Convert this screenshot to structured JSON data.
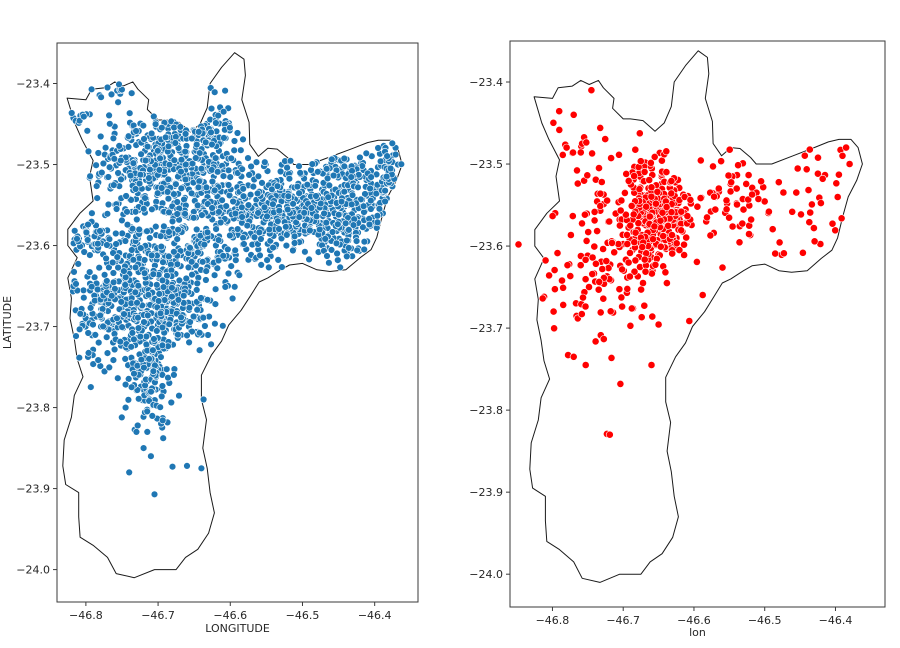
{
  "chart_data": [
    {
      "type": "scatter",
      "xlabel": "LONGITUDE",
      "ylabel": "LATITUDE",
      "xlim": [
        -46.84,
        -46.34
      ],
      "ylim": [
        -24.04,
        -23.35
      ],
      "xticks": [
        -46.8,
        -46.7,
        -46.6,
        -46.5,
        -46.4
      ],
      "yticks": [
        -23.4,
        -23.5,
        -23.6,
        -23.7,
        -23.8,
        -23.9,
        -24.0
      ],
      "color": "#1f77b4",
      "marker_edge": "#ffffff",
      "density": "dense",
      "clusters": [
        {
          "center": [
            -46.7,
            -23.5
          ],
          "spread": [
            0.045,
            0.035
          ],
          "n": 420
        },
        {
          "center": [
            -46.62,
            -23.49
          ],
          "spread": [
            0.018,
            0.04
          ],
          "n": 120
        },
        {
          "center": [
            -46.46,
            -23.55
          ],
          "spread": [
            0.055,
            0.035
          ],
          "n": 520
        },
        {
          "center": [
            -46.56,
            -23.56
          ],
          "spread": [
            0.04,
            0.025
          ],
          "n": 220
        },
        {
          "center": [
            -46.67,
            -23.6
          ],
          "spread": [
            0.045,
            0.03
          ],
          "n": 260
        },
        {
          "center": [
            -46.76,
            -23.67
          ],
          "spread": [
            0.028,
            0.04
          ],
          "n": 280
        },
        {
          "center": [
            -46.68,
            -23.68
          ],
          "spread": [
            0.03,
            0.025
          ],
          "n": 200
        },
        {
          "center": [
            -46.71,
            -23.76
          ],
          "spread": [
            0.015,
            0.03
          ],
          "n": 130
        },
        {
          "center": [
            -46.79,
            -23.59
          ],
          "spread": [
            0.015,
            0.01
          ],
          "n": 40
        },
        {
          "center": [
            -46.76,
            -23.41
          ],
          "spread": [
            0.01,
            0.006
          ],
          "n": 14
        },
        {
          "center": [
            -46.81,
            -23.44
          ],
          "spread": [
            0.008,
            0.008
          ],
          "n": 10
        },
        {
          "center": [
            -46.38,
            -23.51
          ],
          "spread": [
            0.01,
            0.02
          ],
          "n": 40
        }
      ],
      "points": [
        [
          -46.74,
          -23.88
        ],
        [
          -46.705,
          -23.907
        ],
        [
          -46.68,
          -23.873
        ],
        [
          -46.66,
          -23.872
        ],
        [
          -46.64,
          -23.875
        ],
        [
          -46.637,
          -23.79
        ],
        [
          -46.73,
          -23.83
        ],
        [
          -46.715,
          -23.83
        ],
        [
          -46.72,
          -23.85
        ],
        [
          -46.71,
          -23.86
        ],
        [
          -46.745,
          -23.8
        ]
      ]
    },
    {
      "type": "scatter",
      "xlabel": "lon",
      "ylabel": "",
      "xlim": [
        -46.86,
        -46.33
      ],
      "ylim": [
        -24.04,
        -23.35
      ],
      "xticks": [
        -46.8,
        -46.7,
        -46.6,
        -46.5,
        -46.4
      ],
      "yticks": [
        -23.4,
        -23.5,
        -23.6,
        -23.7,
        -23.8,
        -23.9,
        -24.0
      ],
      "color": "#ff0000",
      "marker_edge": "#ffffff",
      "density": "moderate",
      "clusters": [
        {
          "center": [
            -46.655,
            -23.56
          ],
          "spread": [
            0.022,
            0.03
          ],
          "n": 340
        },
        {
          "center": [
            -46.69,
            -23.6
          ],
          "spread": [
            0.04,
            0.05
          ],
          "n": 110
        },
        {
          "center": [
            -46.56,
            -23.54
          ],
          "spread": [
            0.03,
            0.02
          ],
          "n": 40
        },
        {
          "center": [
            -46.46,
            -23.55
          ],
          "spread": [
            0.065,
            0.045
          ],
          "n": 60
        },
        {
          "center": [
            -46.75,
            -23.5
          ],
          "spread": [
            0.025,
            0.04
          ],
          "n": 25
        },
        {
          "center": [
            -46.76,
            -23.66
          ],
          "spread": [
            0.03,
            0.04
          ],
          "n": 40
        }
      ],
      "points": [
        [
          -46.848,
          -23.598
        ],
        [
          -46.723,
          -23.829
        ],
        [
          -46.719,
          -23.83
        ],
        [
          -46.704,
          -23.768
        ],
        [
          -46.753,
          -23.745
        ],
        [
          -46.77,
          -23.44
        ],
        [
          -46.78,
          -23.48
        ],
        [
          -46.385,
          -23.48
        ],
        [
          -46.38,
          -23.5
        ],
        [
          -46.39,
          -23.49
        ],
        [
          -46.77,
          -23.735
        ],
        [
          -46.66,
          -23.745
        ],
        [
          -46.745,
          -23.41
        ]
      ]
    }
  ]
}
